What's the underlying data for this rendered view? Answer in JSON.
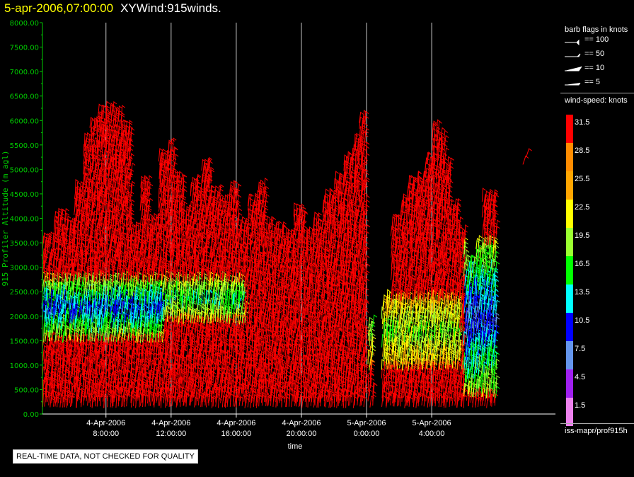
{
  "title": {
    "date": "5-apr-2006,07:00:00",
    "text": "XYWind:915winds."
  },
  "notice": "REAL-TIME DATA, NOT CHECKED FOR QUALITY",
  "legend": {
    "barb_title": "barb flags in knots",
    "barbs": [
      "== 100",
      "== 50",
      "== 10",
      "== 5"
    ],
    "speed_title": "wind-speed: knots",
    "path": "iss-mapr/prof915h"
  },
  "chart_data": {
    "type": "scatter",
    "xlabel": "time",
    "ylabel": "915 Profiler Altitude (m agl)",
    "x_hours_range": [
      4.1,
      35.6
    ],
    "ylim": [
      0,
      8000
    ],
    "yticks": [
      "0.00",
      "500.00",
      "1000.00",
      "1500.00",
      "2000.00",
      "2500.00",
      "3000.00",
      "3500.00",
      "4000.00",
      "4500.00",
      "5000.00",
      "5500.00",
      "6000.00",
      "6500.00",
      "7000.00",
      "7500.00",
      "8000.00"
    ],
    "xticks": [
      {
        "hour": 8,
        "date": "4-Apr-2006",
        "time": "8:00:00"
      },
      {
        "hour": 12,
        "date": "4-Apr-2006",
        "time": "12:00:00"
      },
      {
        "hour": 16,
        "date": "4-Apr-2006",
        "time": "16:00:00"
      },
      {
        "hour": 20,
        "date": "4-Apr-2006",
        "time": "20:00:00"
      },
      {
        "hour": 24,
        "date": "5-Apr-2006",
        "time": "0:00:00"
      },
      {
        "hour": 28,
        "date": "5-Apr-2006",
        "time": "4:00:00"
      }
    ],
    "grid": "vertical lines at x ticks",
    "colorbar": [
      {
        "label": "1.5",
        "color": "#ee82ee"
      },
      {
        "label": "4.5",
        "color": "#a020f0"
      },
      {
        "label": "7.5",
        "color": "#6495ed"
      },
      {
        "label": "10.5",
        "color": "#0000ff"
      },
      {
        "label": "13.5",
        "color": "#00ffff"
      },
      {
        "label": "16.5",
        "color": "#00ff00"
      },
      {
        "label": "19.5",
        "color": "#9aff30"
      },
      {
        "label": "22.5",
        "color": "#ffff00"
      },
      {
        "label": "25.5",
        "color": "#ffa500"
      },
      {
        "label": "28.5",
        "color": "#ff8c00"
      },
      {
        "label": "31.5",
        "color": "#ff0000"
      }
    ],
    "profile_tops": [
      {
        "hour": 4.3,
        "top": 3500
      },
      {
        "hour": 5.2,
        "top": 4000
      },
      {
        "hour": 5.8,
        "top": 3800
      },
      {
        "hour": 6.3,
        "top": 4600
      },
      {
        "hour": 6.8,
        "top": 5500
      },
      {
        "hour": 7.2,
        "top": 5900
      },
      {
        "hour": 7.7,
        "top": 6100
      },
      {
        "hour": 8.2,
        "top": 6200
      },
      {
        "hour": 8.7,
        "top": 6050
      },
      {
        "hour": 9.3,
        "top": 5800
      },
      {
        "hour": 9.8,
        "top": 3700
      },
      {
        "hour": 10.4,
        "top": 4700
      },
      {
        "hour": 11.0,
        "top": 3900
      },
      {
        "hour": 11.5,
        "top": 5200
      },
      {
        "hour": 12.0,
        "top": 5400
      },
      {
        "hour": 12.5,
        "top": 4800
      },
      {
        "hour": 13.0,
        "top": 4100
      },
      {
        "hour": 13.5,
        "top": 4700
      },
      {
        "hour": 14.2,
        "top": 5000
      },
      {
        "hour": 14.8,
        "top": 4500
      },
      {
        "hour": 15.3,
        "top": 4300
      },
      {
        "hour": 15.8,
        "top": 4600
      },
      {
        "hour": 16.4,
        "top": 3800
      },
      {
        "hour": 17.0,
        "top": 4300
      },
      {
        "hour": 17.6,
        "top": 4600
      },
      {
        "hour": 18.1,
        "top": 3800
      },
      {
        "hour": 18.6,
        "top": 3700
      },
      {
        "hour": 19.2,
        "top": 3600
      },
      {
        "hour": 19.8,
        "top": 4100
      },
      {
        "hour": 20.5,
        "top": 3600
      },
      {
        "hour": 21.0,
        "top": 3900
      },
      {
        "hour": 21.6,
        "top": 4400
      },
      {
        "hour": 22.3,
        "top": 4800
      },
      {
        "hour": 22.8,
        "top": 5100
      },
      {
        "hour": 23.4,
        "top": 5500
      },
      {
        "hour": 23.8,
        "top": 6000
      },
      {
        "hour": 24.3,
        "top": 1800
      },
      {
        "hour": 25.2,
        "top": 2300
      },
      {
        "hour": 25.8,
        "top": 3900
      },
      {
        "hour": 26.3,
        "top": 4300
      },
      {
        "hour": 26.8,
        "top": 4700
      },
      {
        "hour": 27.3,
        "top": 4800
      },
      {
        "hour": 27.8,
        "top": 5100
      },
      {
        "hour": 28.2,
        "top": 5800
      },
      {
        "hour": 28.6,
        "top": 5600
      },
      {
        "hour": 29.0,
        "top": 5000
      },
      {
        "hour": 29.4,
        "top": 4200
      },
      {
        "hour": 29.9,
        "top": 3600
      },
      {
        "hour": 30.4,
        "top": 3000
      },
      {
        "hour": 30.9,
        "top": 3400
      },
      {
        "hour": 31.4,
        "top": 4400
      }
    ],
    "low_speed_zones": [
      {
        "hours": [
          4.1,
          11.5
        ],
        "alt": [
          1400,
          2700
        ],
        "speed": 14
      },
      {
        "hours": [
          11.0,
          16.5
        ],
        "alt": [
          1800,
          2700
        ],
        "speed": 18
      },
      {
        "hours": [
          24.0,
          29.8
        ],
        "alt": [
          900,
          2300
        ],
        "speed": 22
      },
      {
        "hours": [
          30.0,
          32.0
        ],
        "alt": [
          300,
          3400
        ],
        "speed": 12
      }
    ]
  }
}
